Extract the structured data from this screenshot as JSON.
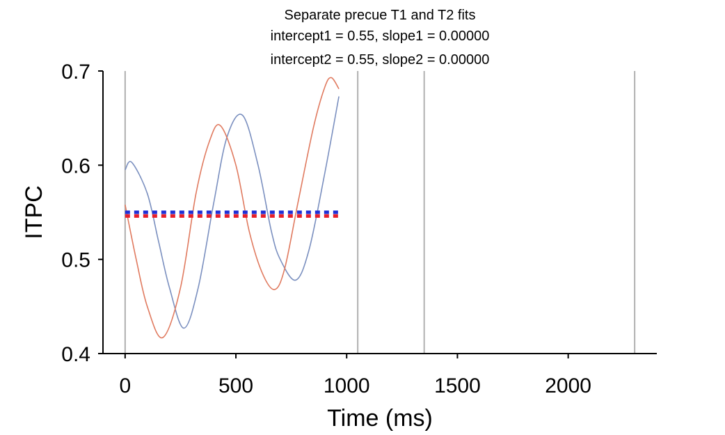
{
  "chart_data": {
    "type": "line",
    "title_lines": [
      "Separate precue T1 and T2 fits",
      "intercept1 = 0.55, slope1 = 0.00000",
      "intercept2 = 0.55, slope2 = 0.00000"
    ],
    "xlabel": "Time (ms)",
    "ylabel": "ITPC",
    "xlim": [
      -100,
      2400
    ],
    "ylim": [
      0.4,
      0.7
    ],
    "xticks": [
      0,
      500,
      1000,
      1500,
      2000
    ],
    "xtick_labels": [
      "0",
      "500",
      "1000",
      "1500",
      "2000"
    ],
    "yticks": [
      0.4,
      0.5,
      0.6,
      0.7
    ],
    "ytick_labels": [
      "0.4",
      "0.5",
      "0.6",
      "0.7"
    ],
    "vlines": [
      0,
      1050,
      1350,
      2300
    ],
    "vline_color": "#b0b0b0",
    "grid": false,
    "series": [
      {
        "color": "#7a8fbf",
        "x": [
          0,
          30,
          100,
          150,
          200,
          265,
          330,
          400,
          460,
          530,
          600,
          660,
          700,
          770,
          830,
          900,
          965
        ],
        "y": [
          0.595,
          0.603,
          0.57,
          0.52,
          0.47,
          0.427,
          0.47,
          0.56,
          0.63,
          0.653,
          0.6,
          0.53,
          0.5,
          0.478,
          0.51,
          0.59,
          0.673
        ]
      },
      {
        "color": "#e07a5f",
        "x": [
          0,
          50,
          100,
          170,
          250,
          320,
          380,
          430,
          500,
          560,
          620,
          675,
          720,
          780,
          850,
          900,
          930,
          965
        ],
        "y": [
          0.558,
          0.5,
          0.45,
          0.417,
          0.47,
          0.57,
          0.625,
          0.642,
          0.6,
          0.53,
          0.485,
          0.468,
          0.49,
          0.56,
          0.64,
          0.682,
          0.693,
          0.681
        ]
      }
    ],
    "fit_lines": [
      {
        "color": "#1f2fd6",
        "x": [
          0,
          965
        ],
        "y": [
          0.55,
          0.55
        ]
      },
      {
        "color": "#e8202a",
        "x": [
          0,
          965
        ],
        "y": [
          0.546,
          0.546
        ]
      }
    ]
  }
}
